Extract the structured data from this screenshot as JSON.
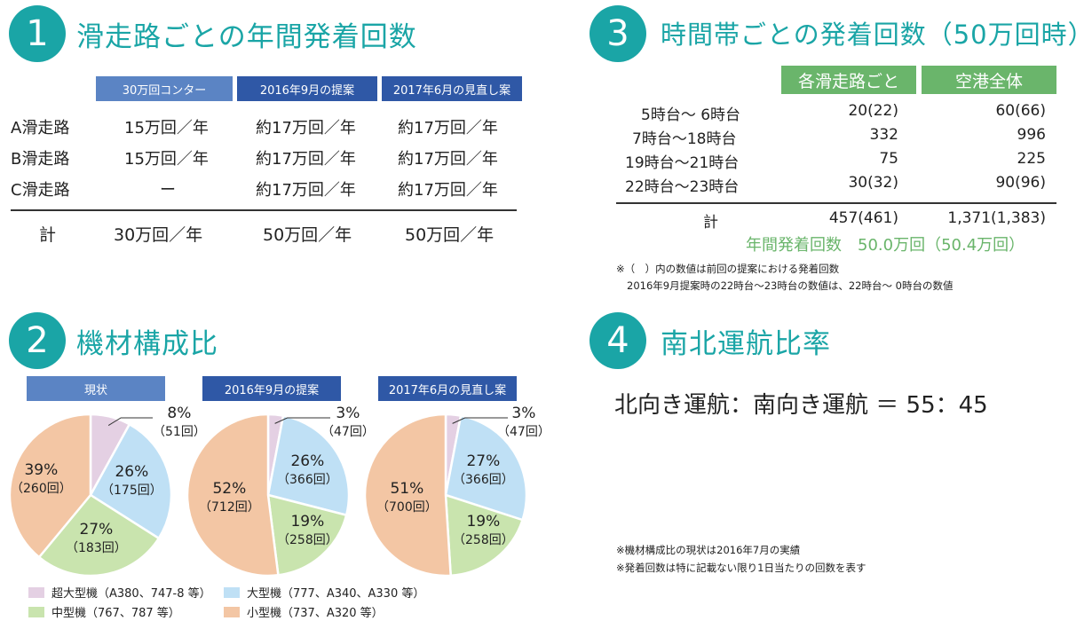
{
  "colors": {
    "teal": "#1aa5a6",
    "header_light": "#5b84c4",
    "header_dark": "#2f58a6",
    "green": "#6ab56b",
    "super_large": "#e4d0e3",
    "large": "#bfe0f5",
    "medium": "#c9e4ae",
    "small": "#f3c6a4"
  },
  "section1": {
    "number": "1",
    "title": "滑走路ごとの年間発着回数",
    "headers": [
      "30万回コンター",
      "2016年9月の提案",
      "2017年6月の見直し案"
    ],
    "rows": [
      {
        "label": "A滑走路",
        "c1": "15万回／年",
        "c2": "約17万回／年",
        "c3": "約17万回／年"
      },
      {
        "label": "B滑走路",
        "c1": "15万回／年",
        "c2": "約17万回／年",
        "c3": "約17万回／年"
      },
      {
        "label": "C滑走路",
        "c1": "ー",
        "c2": "約17万回／年",
        "c3": "約17万回／年"
      }
    ],
    "total": {
      "label": "計",
      "c1": "30万回／年",
      "c2": "50万回／年",
      "c3": "50万回／年"
    }
  },
  "section2": {
    "number": "2",
    "title": "機材構成比",
    "legend": [
      {
        "label": "超大型機（A380、747-8 等）",
        "color": "#e4d0e3"
      },
      {
        "label": "大型機（777、A340、A330 等）",
        "color": "#bfe0f5"
      },
      {
        "label": "中型機（767、787 等）",
        "color": "#c9e4ae"
      },
      {
        "label": "小型機（737、A320 等）",
        "color": "#f3c6a4"
      }
    ]
  },
  "chart_data": [
    {
      "type": "pie",
      "title": "現状",
      "categories": [
        "超大型機",
        "大型機",
        "中型機",
        "小型機"
      ],
      "values": [
        8,
        26,
        27,
        39
      ],
      "counts": [
        "（51回）",
        "（175回）",
        "（183回）",
        "（260回）"
      ],
      "labels": [
        "8%",
        "26%",
        "27%",
        "39%"
      ]
    },
    {
      "type": "pie",
      "title": "2016年9月の提案",
      "categories": [
        "超大型機",
        "大型機",
        "中型機",
        "小型機"
      ],
      "values": [
        3,
        26,
        19,
        52
      ],
      "counts": [
        "（47回）",
        "（366回）",
        "（258回）",
        "（712回）"
      ],
      "labels": [
        "3%",
        "26%",
        "19%",
        "52%"
      ]
    },
    {
      "type": "pie",
      "title": "2017年6月の見直し案",
      "categories": [
        "超大型機",
        "大型機",
        "中型機",
        "小型機"
      ],
      "values": [
        3,
        27,
        19,
        51
      ],
      "counts": [
        "（47回）",
        "（366回）",
        "（258回）",
        "（700回）"
      ],
      "labels": [
        "3%",
        "27%",
        "19%",
        "51%"
      ]
    }
  ],
  "section3": {
    "number": "3",
    "title": "時間帯ごとの発着回数（50万回時）",
    "headers": [
      "各滑走路ごと",
      "空港全体"
    ],
    "rows": [
      {
        "label": "5時台〜 6時台",
        "c1": "20(22)",
        "c2": "60(66)"
      },
      {
        "label": "7時台〜18時台",
        "c1": "332",
        "c2": "996"
      },
      {
        "label": "19時台〜21時台",
        "c1": "75",
        "c2": "225"
      },
      {
        "label": "22時台〜23時台",
        "c1": "30(32)",
        "c2": "90(96)"
      }
    ],
    "total": {
      "label": "計",
      "c1": "457(461)",
      "c2": "1,371(1,383)"
    },
    "annual": "年間発着回数　50.0万回（50.4万回）",
    "note1": "※（　）内の数値は前回の提案における発着回数",
    "note2": "2016年9月提案時の22時台〜23時台の数値は、22時台〜 0時台の数値"
  },
  "section4": {
    "number": "4",
    "title": "南北運航比率",
    "ratio": "北向き運航：南向き運航 ＝ 55：45"
  },
  "notes": {
    "n1": "※機材構成比の現状は2016年7月の実績",
    "n2": "※発着回数は特に記載ない限り1日当たりの回数を表す"
  }
}
